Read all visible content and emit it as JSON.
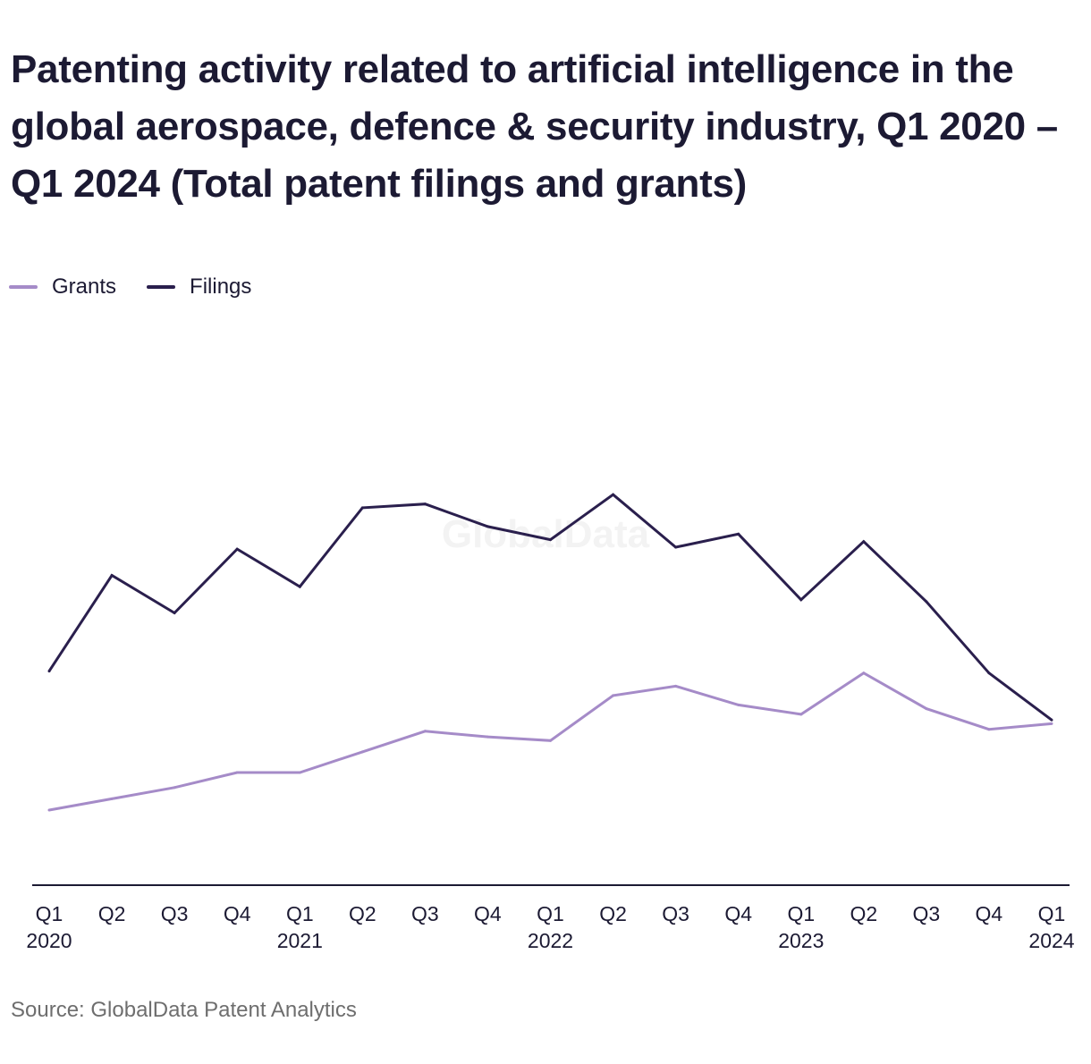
{
  "title": "Patenting activity related to artificial intelligence in the global aerospace, defence & security industry, Q1 2020 – Q1 2024 (Total patent filings and grants)",
  "source": "Source: GlobalData Patent Analytics",
  "watermark": "GlobalData",
  "colors": {
    "grants": "#a58bc8",
    "filings": "#2a1f4d",
    "axis": "#1c1a33",
    "text": "#1c1a33",
    "source": "#6e6e6e"
  },
  "chart_data": {
    "type": "line",
    "title": "Patenting activity related to artificial intelligence in the global aerospace, defence & security industry, Q1 2020 – Q1 2024 (Total patent filings and grants)",
    "xlabel": "",
    "ylabel": "",
    "ylim": [
      0,
      300
    ],
    "grid": false,
    "legend": "top-left",
    "categories": [
      "Q1 2020",
      "Q2",
      "Q3",
      "Q4",
      "Q1 2021",
      "Q2",
      "Q3",
      "Q4",
      "Q1 2022",
      "Q2",
      "Q3",
      "Q4",
      "Q1 2023",
      "Q2",
      "Q3",
      "Q4",
      "Q1 2024"
    ],
    "tick_labels": [
      {
        "quarter": "Q1",
        "year": "2020"
      },
      {
        "quarter": "Q2",
        "year": ""
      },
      {
        "quarter": "Q3",
        "year": ""
      },
      {
        "quarter": "Q4",
        "year": ""
      },
      {
        "quarter": "Q1",
        "year": "2021"
      },
      {
        "quarter": "Q2",
        "year": ""
      },
      {
        "quarter": "Q3",
        "year": ""
      },
      {
        "quarter": "Q4",
        "year": ""
      },
      {
        "quarter": "Q1",
        "year": "2022"
      },
      {
        "quarter": "Q2",
        "year": ""
      },
      {
        "quarter": "Q3",
        "year": ""
      },
      {
        "quarter": "Q4",
        "year": ""
      },
      {
        "quarter": "Q1",
        "year": "2023"
      },
      {
        "quarter": "Q2",
        "year": ""
      },
      {
        "quarter": "Q3",
        "year": ""
      },
      {
        "quarter": "Q4",
        "year": ""
      },
      {
        "quarter": "Q1",
        "year": "2024"
      }
    ],
    "series": [
      {
        "name": "Grants",
        "values": [
          40,
          46,
          52,
          60,
          60,
          71,
          82,
          79,
          77,
          101,
          106,
          96,
          91,
          113,
          94,
          83,
          86
        ]
      },
      {
        "name": "Filings",
        "values": [
          114,
          165,
          145,
          179,
          159,
          201,
          203,
          191,
          184,
          208,
          180,
          187,
          152,
          183,
          151,
          113,
          88
        ]
      }
    ]
  }
}
